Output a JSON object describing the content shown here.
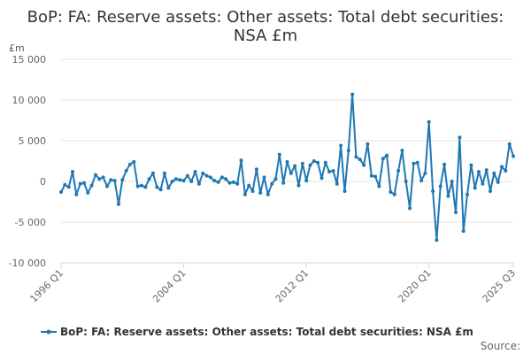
{
  "chart_data": {
    "type": "line",
    "title_lines": [
      "BoP: FA: Reserve assets: Other assets: Total debt securities:",
      "NSA £m"
    ],
    "ylabel": "£m",
    "ylim": [
      -10000,
      15000
    ],
    "yticks": [
      15000,
      10000,
      5000,
      0,
      -5000,
      -10000
    ],
    "ytick_labels": [
      "15 000",
      "10 000",
      "5 000",
      "0",
      "-5 000",
      "-10 000"
    ],
    "xtick_labels": [
      "1996 Q1",
      "2004 Q1",
      "2012 Q1",
      "2020 Q1",
      "2025 Q3"
    ],
    "xtick_indices": [
      0,
      32,
      64,
      96,
      118
    ],
    "grid": true,
    "legend_position": "bottom",
    "source_label": "Source:",
    "series": [
      {
        "name": "BoP: FA: Reserve assets: Other assets: Total debt securities: NSA £m",
        "color": "#1f77b4",
        "x_start": "1996 Q1",
        "x_end": "2025 Q3",
        "values": [
          -1300,
          -400,
          -700,
          1200,
          -1600,
          -300,
          -200,
          -1400,
          -500,
          800,
          300,
          500,
          -600,
          200,
          100,
          -2800,
          200,
          1300,
          2100,
          2400,
          -600,
          -500,
          -700,
          300,
          1000,
          -700,
          -1000,
          1000,
          -800,
          0,
          300,
          200,
          100,
          700,
          0,
          1200,
          -300,
          1000,
          700,
          500,
          100,
          -100,
          500,
          300,
          -200,
          -100,
          -300,
          2600,
          -1600,
          -500,
          -1200,
          1500,
          -1400,
          500,
          -1600,
          -300,
          300,
          3300,
          -200,
          2400,
          1000,
          1900,
          -500,
          2200,
          100,
          2000,
          2500,
          2300,
          400,
          2300,
          1200,
          1300,
          -300,
          4400,
          -1200,
          3800,
          10700,
          3000,
          2700,
          2000,
          4600,
          700,
          600,
          -600,
          2800,
          3200,
          -1300,
          -1600,
          1300,
          3800,
          0,
          -3300,
          2200,
          2300,
          100,
          1000,
          7300,
          -1200,
          -7200,
          -600,
          2100,
          -1800,
          0,
          -3800,
          5400,
          -6100,
          -1600,
          2000,
          -800,
          1200,
          -300,
          1400,
          -1200,
          1000,
          -100,
          1800,
          1300,
          4600,
          3100
        ]
      }
    ]
  }
}
